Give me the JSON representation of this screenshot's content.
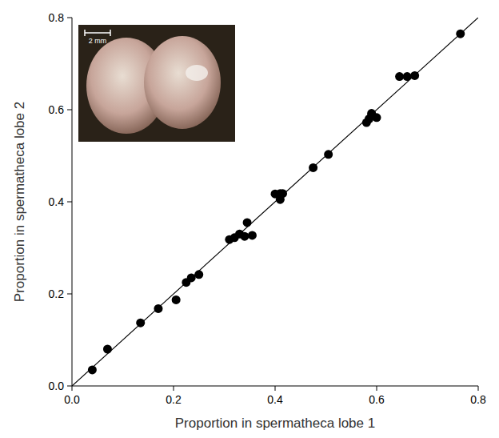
{
  "chart_data": {
    "type": "scatter",
    "xlabel": "Proportion in spermatheca lobe 1",
    "ylabel": "Proportion in spermatheca lobe 2",
    "annotations": [
      "2 mm"
    ],
    "x": [
      0.04,
      0.07,
      0.135,
      0.17,
      0.205,
      0.225,
      0.235,
      0.25,
      0.31,
      0.32,
      0.33,
      0.34,
      0.345,
      0.355,
      0.4,
      0.41,
      0.41,
      0.415,
      0.475,
      0.505,
      0.58,
      0.585,
      0.59,
      0.59,
      0.6,
      0.645,
      0.66,
      0.675,
      0.765
    ],
    "values": [
      0.035,
      0.08,
      0.137,
      0.168,
      0.187,
      0.225,
      0.235,
      0.242,
      0.318,
      0.322,
      0.33,
      0.325,
      0.355,
      0.327,
      0.417,
      0.405,
      0.418,
      0.418,
      0.474,
      0.503,
      0.572,
      0.58,
      0.592,
      0.587,
      0.583,
      0.672,
      0.672,
      0.674,
      0.765
    ],
    "color": "#000000",
    "marker": "circle",
    "xlim": [
      0,
      0.8
    ],
    "ylim": [
      0,
      0.8
    ],
    "xticks": [
      {
        "value": 0,
        "label": "0.0"
      },
      {
        "value": 0.2,
        "label": "0.2"
      },
      {
        "value": 0.4,
        "label": "0.4"
      },
      {
        "value": 0.6,
        "label": "0.6"
      },
      {
        "value": 0.8,
        "label": "0.8"
      }
    ],
    "yticks": [
      {
        "value": 0,
        "label": "0.0"
      },
      {
        "value": 0.2,
        "label": "0.2"
      },
      {
        "value": 0.4,
        "label": "0.4"
      },
      {
        "value": 0.6,
        "label": "0.6"
      },
      {
        "value": 0.8,
        "label": "0.8"
      }
    ],
    "grid": false
  }
}
